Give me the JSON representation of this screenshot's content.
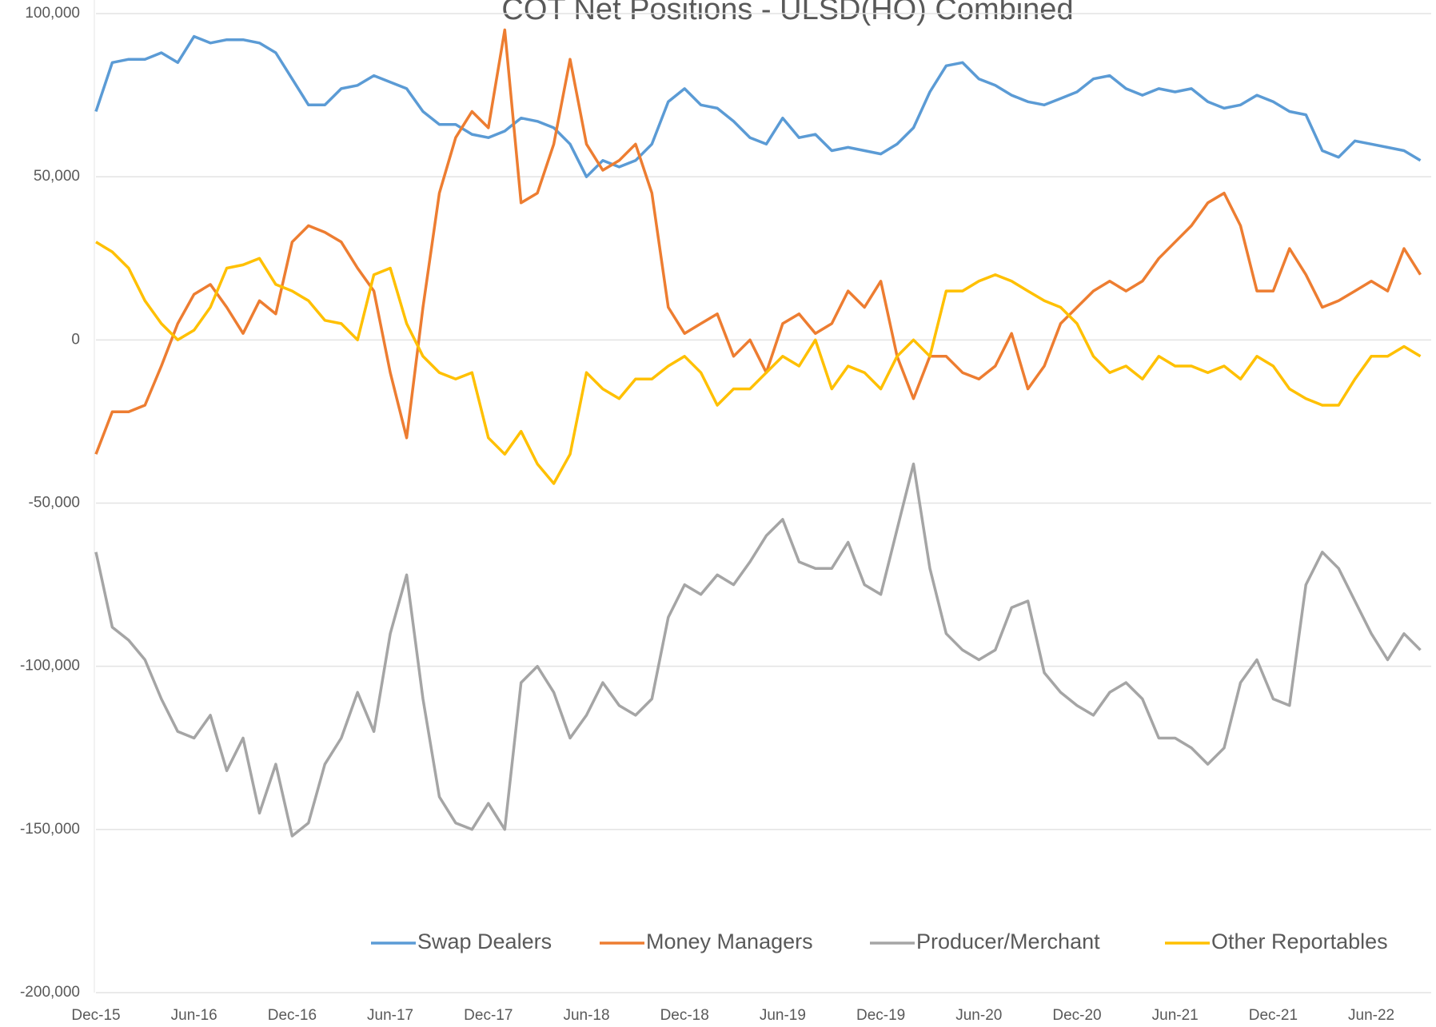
{
  "chart_data": {
    "type": "line",
    "title": "COT Net Positions - ULSD(HO) Combined",
    "categories": [
      "Dec-15",
      null,
      null,
      null,
      null,
      null,
      "Jun-16",
      null,
      null,
      null,
      null,
      null,
      "Dec-16",
      null,
      null,
      null,
      null,
      null,
      "Jun-17",
      null,
      null,
      null,
      null,
      null,
      "Dec-17",
      null,
      null,
      null,
      null,
      null,
      "Jun-18",
      null,
      null,
      null,
      null,
      null,
      "Dec-18",
      null,
      null,
      null,
      null,
      null,
      "Jun-19",
      null,
      null,
      null,
      null,
      null,
      "Dec-19",
      null,
      null,
      null,
      null,
      null,
      "Jun-20",
      null,
      null,
      null,
      null,
      null,
      "Dec-20",
      null,
      null,
      null,
      null,
      null,
      "Jun-21",
      null,
      null,
      null,
      null,
      null,
      "Dec-21",
      null,
      null,
      null,
      null,
      null,
      "Jun-22",
      null,
      null,
      null
    ],
    "ylim": [
      -200000,
      100000
    ],
    "yticks": [
      {
        "value": -200000,
        "label": "-200,000"
      },
      {
        "value": -150000,
        "label": "-150,000"
      },
      {
        "value": -100000,
        "label": "-100,000"
      },
      {
        "value": -50000,
        "label": "-50,000"
      },
      0,
      {
        "value": 50000,
        "label": "50,000"
      },
      {
        "value": 100000,
        "label": "100,000"
      }
    ],
    "grid": true,
    "legend": "bottom",
    "series": [
      {
        "name": "Swap Dealers",
        "color": "#5b9bd5",
        "values": [
          70000,
          85000,
          86000,
          86000,
          88000,
          85000,
          93000,
          91000,
          92000,
          92000,
          91000,
          88000,
          80000,
          72000,
          72000,
          77000,
          78000,
          81000,
          79000,
          77000,
          70000,
          66000,
          66000,
          63000,
          62000,
          64000,
          68000,
          67000,
          65000,
          60000,
          50000,
          55000,
          53000,
          55000,
          60000,
          73000,
          77000,
          72000,
          71000,
          67000,
          62000,
          60000,
          68000,
          62000,
          63000,
          58000,
          59000,
          58000,
          57000,
          60000,
          65000,
          76000,
          84000,
          85000,
          80000,
          78000,
          75000,
          73000,
          72000,
          74000,
          76000,
          80000,
          81000,
          77000,
          75000,
          77000,
          76000,
          77000,
          73000,
          71000,
          72000,
          75000,
          73000,
          70000,
          69000,
          58000,
          56000,
          61000,
          60000,
          59000,
          58000,
          55000
        ]
      },
      {
        "name": "Money Managers",
        "color": "#ed7d31",
        "values": [
          -35000,
          -22000,
          -22000,
          -20000,
          -8000,
          5000,
          14000,
          17000,
          10000,
          2000,
          12000,
          8000,
          30000,
          35000,
          33000,
          30000,
          22000,
          15000,
          -10000,
          -30000,
          10000,
          45000,
          62000,
          70000,
          65000,
          95000,
          42000,
          45000,
          60000,
          86000,
          60000,
          52000,
          55000,
          60000,
          45000,
          10000,
          2000,
          5000,
          8000,
          -5000,
          0,
          -10000,
          5000,
          8000,
          2000,
          5000,
          15000,
          10000,
          18000,
          -5000,
          -18000,
          -5000,
          -5000,
          -10000,
          -12000,
          -8000,
          2000,
          -15000,
          -8000,
          5000,
          10000,
          15000,
          18000,
          15000,
          18000,
          25000,
          30000,
          35000,
          42000,
          45000,
          35000,
          15000,
          15000,
          28000,
          20000,
          10000,
          12000,
          15000,
          18000,
          15000,
          28000,
          20000
        ]
      },
      {
        "name": "Producer/Merchant",
        "color": "#a5a5a5",
        "values": [
          -65000,
          -88000,
          -92000,
          -98000,
          -110000,
          -120000,
          -122000,
          -115000,
          -132000,
          -122000,
          -145000,
          -130000,
          -152000,
          -148000,
          -130000,
          -122000,
          -108000,
          -120000,
          -90000,
          -72000,
          -110000,
          -140000,
          -148000,
          -150000,
          -142000,
          -150000,
          -105000,
          -100000,
          -108000,
          -122000,
          -115000,
          -105000,
          -112000,
          -115000,
          -110000,
          -85000,
          -75000,
          -78000,
          -72000,
          -75000,
          -68000,
          -60000,
          -55000,
          -68000,
          -70000,
          -70000,
          -62000,
          -75000,
          -78000,
          -58000,
          -38000,
          -70000,
          -90000,
          -95000,
          -98000,
          -95000,
          -82000,
          -80000,
          -102000,
          -108000,
          -112000,
          -115000,
          -108000,
          -105000,
          -110000,
          -122000,
          -122000,
          -125000,
          -130000,
          -125000,
          -105000,
          -98000,
          -110000,
          -112000,
          -75000,
          -65000,
          -70000,
          -80000,
          -90000,
          -98000,
          -90000,
          -95000
        ]
      },
      {
        "name": "Other Reportables",
        "color": "#ffc000",
        "values": [
          30000,
          27000,
          22000,
          12000,
          5000,
          0,
          3000,
          10000,
          22000,
          23000,
          25000,
          17000,
          15000,
          12000,
          6000,
          5000,
          0,
          20000,
          22000,
          5000,
          -5000,
          -10000,
          -12000,
          -10000,
          -30000,
          -35000,
          -28000,
          -38000,
          -44000,
          -35000,
          -10000,
          -15000,
          -18000,
          -12000,
          -12000,
          -8000,
          -5000,
          -10000,
          -20000,
          -15000,
          -15000,
          -10000,
          -5000,
          -8000,
          0,
          -15000,
          -8000,
          -10000,
          -15000,
          -5000,
          0,
          -5000,
          15000,
          15000,
          18000,
          20000,
          18000,
          15000,
          12000,
          10000,
          5000,
          -5000,
          -10000,
          -8000,
          -12000,
          -5000,
          -8000,
          -8000,
          -10000,
          -8000,
          -12000,
          -5000,
          -8000,
          -15000,
          -18000,
          -20000,
          -20000,
          -12000,
          -5000,
          -5000,
          -2000,
          -5000
        ]
      }
    ]
  }
}
